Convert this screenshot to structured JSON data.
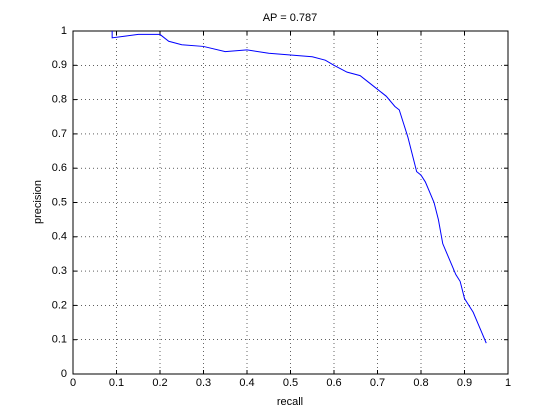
{
  "chart_data": {
    "type": "line",
    "title": "AP = 0.787",
    "xlabel": "recall",
    "ylabel": "precision",
    "x": [
      0.09,
      0.09,
      0.12,
      0.15,
      0.2,
      0.22,
      0.25,
      0.3,
      0.35,
      0.4,
      0.45,
      0.5,
      0.55,
      0.58,
      0.6,
      0.63,
      0.66,
      0.68,
      0.7,
      0.72,
      0.74,
      0.75,
      0.76,
      0.77,
      0.78,
      0.79,
      0.8,
      0.81,
      0.82,
      0.83,
      0.84,
      0.85,
      0.86,
      0.87,
      0.88,
      0.89,
      0.9,
      0.91,
      0.92,
      0.93,
      0.94,
      0.95
    ],
    "series": [
      {
        "color": "#0000ff",
        "values": [
          1.0,
          0.98,
          0.985,
          0.99,
          0.99,
          0.97,
          0.96,
          0.955,
          0.94,
          0.945,
          0.935,
          0.93,
          0.925,
          0.915,
          0.9,
          0.88,
          0.87,
          0.85,
          0.83,
          0.81,
          0.78,
          0.77,
          0.73,
          0.69,
          0.64,
          0.59,
          0.58,
          0.56,
          0.53,
          0.5,
          0.45,
          0.38,
          0.35,
          0.32,
          0.29,
          0.27,
          0.22,
          0.2,
          0.18,
          0.15,
          0.12,
          0.09
        ]
      }
    ],
    "xlim": [
      0,
      1
    ],
    "ylim": [
      0,
      1
    ],
    "xticks": [
      0,
      0.1,
      0.2,
      0.3,
      0.4,
      0.5,
      0.6,
      0.7,
      0.8,
      0.9,
      1
    ],
    "yticks": [
      0,
      0.1,
      0.2,
      0.3,
      0.4,
      0.5,
      0.6,
      0.7,
      0.8,
      0.9,
      1
    ],
    "grid": true
  }
}
